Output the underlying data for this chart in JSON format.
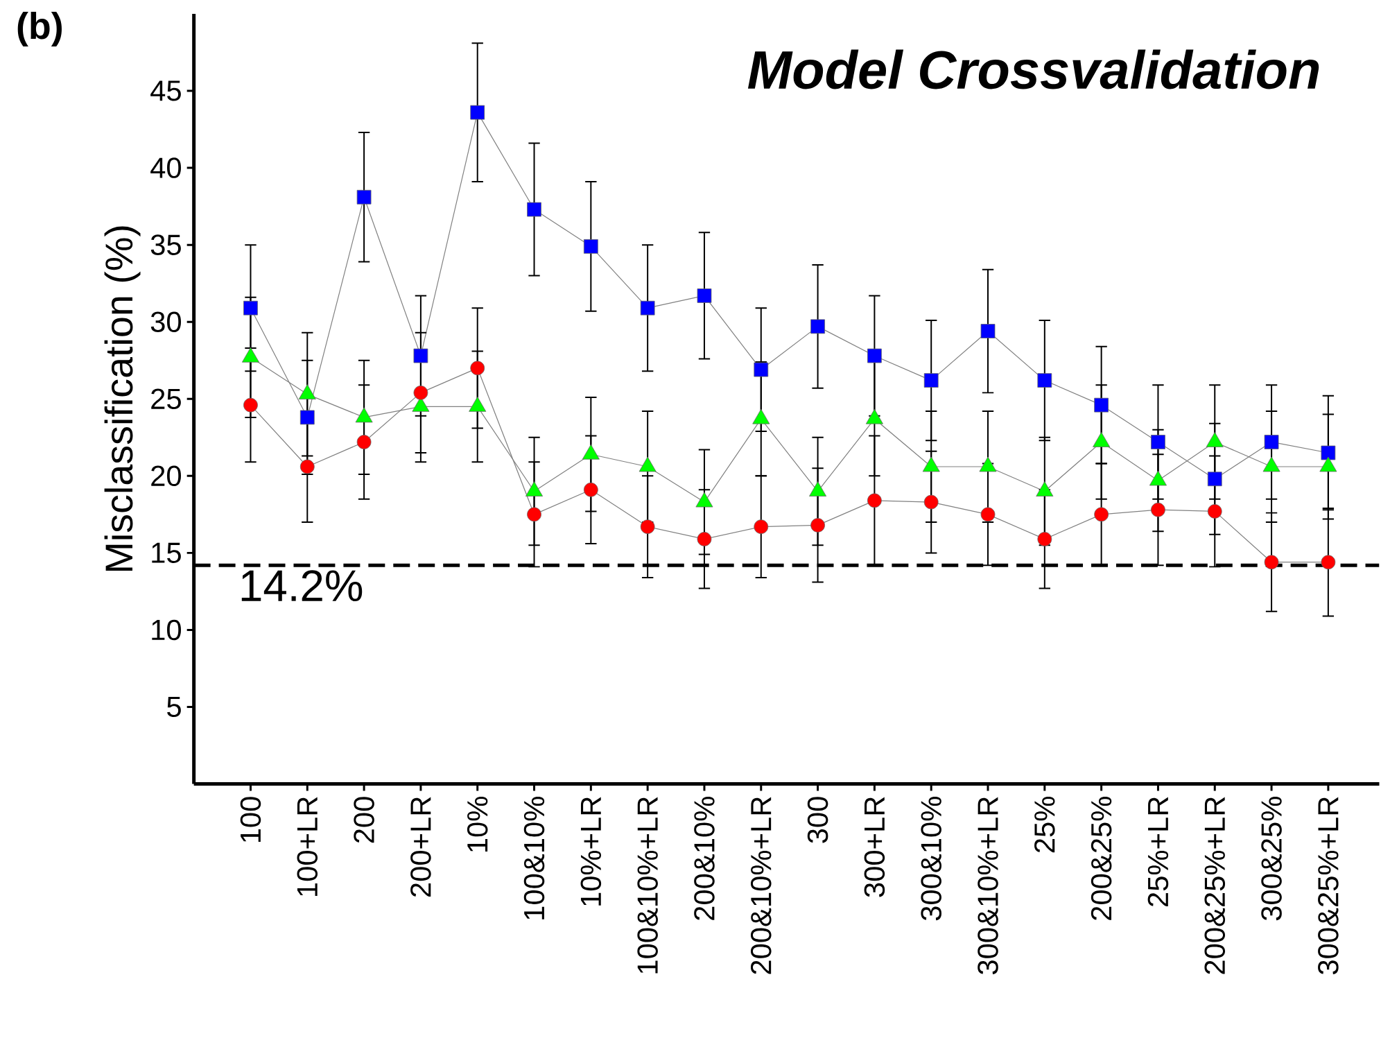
{
  "chart_data": {
    "type": "line",
    "title": "Model Crossvalidation",
    "ylabel": "Misclassification (%)",
    "annotations": [
      "(b)"
    ],
    "categories": [
      "100",
      "100+LR",
      "200",
      "200+LR",
      "10%",
      "100&10%",
      "10%+LR",
      "100&10%+LR",
      "200&10%",
      "200&10%+LR",
      "300",
      "300+LR",
      "300&10%",
      "300&10%+LR",
      "25%",
      "200&25%",
      "25%+LR",
      "200&25%+LR",
      "300&25%",
      "300&25%+LR"
    ],
    "ylim": [
      0,
      50
    ],
    "yticks": [
      5,
      10,
      15,
      20,
      25,
      30,
      35,
      40,
      45
    ],
    "grid": false,
    "line_style": "solid",
    "ref_lines": [
      {
        "axis": "y",
        "value": 14.2,
        "label": "14.2%",
        "color": "#000000",
        "line_style": "dashed"
      }
    ],
    "series": [
      {
        "color": "#0000ff",
        "marker": "square",
        "values": [
          30.9,
          23.8,
          38.1,
          27.8,
          43.6,
          37.3,
          34.9,
          30.9,
          31.7,
          26.9,
          29.7,
          27.8,
          26.2,
          29.4,
          26.2,
          24.6,
          22.2,
          19.8,
          22.2,
          21.5
        ],
        "errors": [
          4.1,
          3.7,
          4.2,
          3.9,
          4.5,
          4.3,
          4.2,
          4.1,
          4.1,
          4.0,
          4.0,
          3.9,
          3.9,
          4.0,
          3.9,
          3.8,
          3.7,
          3.6,
          3.7,
          3.7
        ]
      },
      {
        "color": "#00ff00",
        "marker": "triangle",
        "values": [
          27.7,
          25.3,
          23.8,
          24.5,
          24.5,
          19.0,
          21.4,
          20.6,
          18.3,
          23.7,
          19.0,
          23.7,
          20.6,
          20.6,
          19.0,
          22.2,
          19.7,
          22.2,
          20.6,
          20.6
        ],
        "errors": [
          3.9,
          4.0,
          3.7,
          3.6,
          3.6,
          3.5,
          3.7,
          3.6,
          3.4,
          3.7,
          3.5,
          3.7,
          3.6,
          3.6,
          3.5,
          3.7,
          3.3,
          3.7,
          3.6,
          3.4
        ]
      },
      {
        "color": "#ff0000",
        "marker": "circle",
        "values": [
          24.6,
          20.6,
          22.2,
          25.4,
          27.0,
          17.5,
          19.1,
          16.7,
          15.9,
          16.7,
          16.8,
          18.4,
          18.3,
          17.5,
          15.9,
          17.5,
          17.8,
          17.7,
          14.4,
          14.4
        ],
        "errors": [
          3.7,
          3.6,
          3.7,
          3.9,
          3.9,
          3.4,
          3.5,
          3.3,
          3.2,
          3.3,
          3.7,
          4.2,
          3.3,
          3.3,
          3.2,
          3.3,
          3.6,
          3.6,
          3.2,
          3.5
        ]
      }
    ]
  }
}
